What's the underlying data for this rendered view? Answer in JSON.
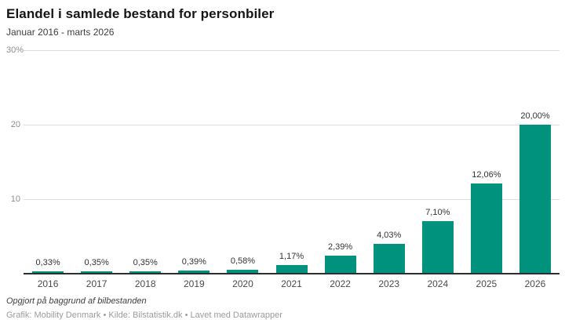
{
  "header": {
    "title": "Elandel i samlede bestand for personbiler",
    "subtitle": "Januar 2016 - marts 2026"
  },
  "chart_data": {
    "type": "bar",
    "title": "Elandel i samlede bestand for personbiler",
    "subtitle": "Januar 2016 - marts 2026",
    "categories": [
      "2016",
      "2017",
      "2018",
      "2019",
      "2020",
      "2021",
      "2022",
      "2023",
      "2024",
      "2025",
      "2026"
    ],
    "values": [
      0.33,
      0.35,
      0.35,
      0.39,
      0.58,
      1.17,
      2.39,
      4.03,
      7.1,
      12.06,
      20.0
    ],
    "value_labels": [
      "0,33%",
      "0,35%",
      "0,35%",
      "0,39%",
      "0,58%",
      "1,17%",
      "2,39%",
      "4,03%",
      "7,10%",
      "12,06%",
      "20,00%"
    ],
    "xlabel": "",
    "ylabel": "",
    "ylim": [
      0,
      30
    ],
    "yticks": [
      {
        "value": 30,
        "label": "30%"
      },
      {
        "value": 20,
        "label": "20"
      },
      {
        "value": 10,
        "label": "10"
      }
    ],
    "grid": true,
    "legend": "none",
    "bar_color": "#00927c"
  },
  "footer": {
    "note": "Opgjort på baggrund af bilbestanden",
    "credits": "Grafik: Mobility Denmark • Kilde: Bilstatistik.dk • Lavet med Datawrapper"
  }
}
